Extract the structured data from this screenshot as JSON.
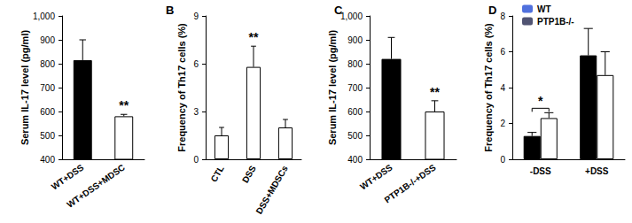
{
  "chart_data": [
    {
      "type": "bar",
      "y_label": "Serum IL-17 level (pg/ml)",
      "categories": [
        "WT+DSS",
        "WT+DSS+MDSC"
      ],
      "values": [
        815,
        580
      ],
      "errors": [
        85,
        8
      ],
      "colors": [
        "#000000",
        "#ffffff"
      ],
      "ylim": [
        400,
        1000
      ],
      "yticks": [
        400,
        500,
        600,
        700,
        800,
        900,
        1000
      ],
      "grid": false,
      "annotations": [
        {
          "text": "**",
          "category": "WT+DSS+MDSC"
        }
      ]
    },
    {
      "type": "bar",
      "title": "B",
      "y_label": "Frequency of Th17 cells (%)",
      "categories": [
        "CTL",
        "DSS",
        "DSS+MDSCs"
      ],
      "values": [
        1.5,
        5.8,
        2.0
      ],
      "errors": [
        0.5,
        1.3,
        0.5
      ],
      "colors": [
        "#ffffff",
        "#ffffff",
        "#ffffff"
      ],
      "ylim": [
        0,
        9
      ],
      "yticks": [
        0,
        3,
        6,
        9
      ],
      "grid": false,
      "annotations": [
        {
          "text": "**",
          "category": "DSS"
        }
      ]
    },
    {
      "type": "bar",
      "title": "C",
      "y_label": "Serum IL-17 level (pg/ml)",
      "categories": [
        "WT+DSS",
        "PTP1B-/-+DSS"
      ],
      "values": [
        820,
        600
      ],
      "errors": [
        90,
        45
      ],
      "colors": [
        "#000000",
        "#ffffff"
      ],
      "ylim": [
        400,
        1000
      ],
      "yticks": [
        400,
        500,
        600,
        700,
        800,
        900,
        1000
      ],
      "grid": false,
      "annotations": [
        {
          "text": "**",
          "category": "PTP1B-/-+DSS"
        }
      ]
    },
    {
      "type": "bar",
      "title": "D",
      "y_label": "Frequency of Th17 cells (%)",
      "categories": [
        "-DSS",
        "+DSS"
      ],
      "series": [
        {
          "name": "WT",
          "color": "#000000",
          "values": [
            1.3,
            5.8
          ],
          "errors": [
            0.2,
            1.5
          ]
        },
        {
          "name": "PTP1B-/-",
          "color": "#ffffff",
          "values": [
            2.3,
            4.7
          ],
          "errors": [
            0.3,
            1.3
          ]
        }
      ],
      "ylim": [
        0,
        8
      ],
      "yticks": [
        0,
        2,
        4,
        6,
        8
      ],
      "grid": false,
      "legend": "top-left",
      "annotations": [
        {
          "text": "*",
          "category": "-DSS"
        }
      ]
    }
  ]
}
